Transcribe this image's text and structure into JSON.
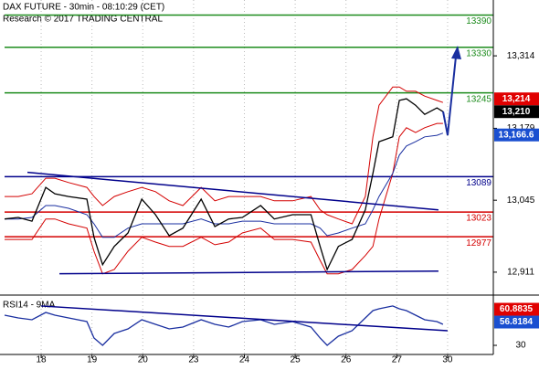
{
  "chart_data": [
    {
      "type": "line",
      "title": "DAX FUTURE - 30min - 08:10:29 (CET)",
      "subtitle": "Research © 2017 TRADING CENTRAL",
      "grid": true,
      "x": [
        -0.72,
        -0.45,
        -0.18,
        0.09,
        0.27,
        0.54,
        0.9,
        1.04,
        1.21,
        1.44,
        1.71,
        1.98,
        2.25,
        2.52,
        2.79,
        3.15,
        3.42,
        3.69,
        3.96,
        4.32,
        4.59,
        4.95,
        5.31,
        5.49,
        5.63,
        5.85,
        6.12,
        6.38,
        6.53,
        6.65,
        6.92,
        7.05,
        7.19,
        7.37,
        7.55,
        7.79,
        7.91
      ],
      "xlim": [
        -0.81,
        8.9
      ],
      "xticks": [
        {
          "value": 0,
          "label": "18"
        },
        {
          "value": 1,
          "label": "19"
        },
        {
          "value": 2,
          "label": "20"
        },
        {
          "value": 3,
          "label": "23"
        },
        {
          "value": 4,
          "label": "24"
        },
        {
          "value": 5,
          "label": "25"
        },
        {
          "value": 6,
          "label": "26"
        },
        {
          "value": 7,
          "label": "27"
        },
        {
          "value": 8,
          "label": "30"
        }
      ],
      "ylim": [
        12870,
        13418
      ],
      "yticks": [
        {
          "value": 13314,
          "label": "13,314"
        },
        {
          "value": 13179,
          "label": "13,179"
        },
        {
          "value": 13045,
          "label": "13,045"
        },
        {
          "value": 12911,
          "label": "12,911"
        }
      ],
      "series": [
        {
          "color": "#d40000",
          "values": [
            13052,
            13052,
            13057,
            13086,
            13086,
            13078,
            13069,
            13052,
            13035,
            13052,
            13061,
            13069,
            13061,
            13044,
            13035,
            13069,
            13044,
            13052,
            13052,
            13052,
            13044,
            13044,
            13052,
            13027,
            13018,
            13010,
            13001,
            13052,
            13163,
            13222,
            13256,
            13256,
            13248,
            13248,
            13239,
            13231,
            13227
          ]
        },
        {
          "color": "#d40000",
          "values": [
            12972,
            12972,
            12972,
            13010,
            13010,
            13001,
            12993,
            12950,
            12908,
            12916,
            12950,
            12976,
            12967,
            12959,
            12959,
            12976,
            12962,
            12967,
            12984,
            12993,
            12972,
            12972,
            12967,
            12933,
            12908,
            12908,
            12916,
            12942,
            12959,
            13010,
            13095,
            13163,
            13180,
            13171,
            13180,
            13188,
            13188
          ]
        },
        {
          "color": "#1a2fa0",
          "values": [
            13010,
            13010,
            13013,
            13035,
            13035,
            13030,
            13018,
            13001,
            12976,
            12976,
            12993,
            13001,
            13001,
            13001,
            13001,
            13010,
            13001,
            13001,
            13006,
            13006,
            13001,
            13001,
            13001,
            12993,
            12979,
            12984,
            12993,
            13001,
            13027,
            13052,
            13095,
            13129,
            13146,
            13154,
            13163,
            13166,
            13170
          ]
        },
        {
          "color": "#000000",
          "values": [
            13010,
            13013,
            13006,
            13069,
            13057,
            13052,
            13047,
            12976,
            12925,
            12959,
            12984,
            13047,
            13018,
            12979,
            12993,
            13047,
            12996,
            13010,
            13013,
            13035,
            13010,
            13018,
            13018,
            12959,
            12916,
            12959,
            12972,
            13027,
            13095,
            13154,
            13163,
            13231,
            13234,
            13222,
            13205,
            13217,
            13210
          ]
        }
      ],
      "levels": [
        {
          "value": 13390,
          "color": "#1e8c1e"
        },
        {
          "value": 13330,
          "color": "#1e8c1e"
        },
        {
          "value": 13245,
          "color": "#1e8c1e"
        },
        {
          "value": 13089,
          "color": "#00008b"
        },
        {
          "value": 13023,
          "color": "#d40000"
        },
        {
          "value": 12977,
          "color": "#d40000"
        }
      ],
      "trendlines": [
        {
          "x": [
            -0.27,
            7.82
          ],
          "values": [
            13097,
            13027
          ],
          "color": "#00008b"
        },
        {
          "x": [
            0.36,
            7.82
          ],
          "values": [
            12908,
            12913
          ],
          "color": "#00008b"
        }
      ],
      "price_labels": [
        {
          "value": 13214,
          "label": "13,214",
          "color": "#e00000"
        },
        {
          "value": 13210,
          "label": "13,210",
          "color": "#000000"
        },
        {
          "value": 13166.6,
          "label": "13,166.6",
          "color": "#1a4fd0"
        }
      ]
    },
    {
      "type": "line",
      "title": "RSI14 - 9MA",
      "grid": true,
      "x": [
        -0.72,
        -0.45,
        -0.18,
        0.09,
        0.27,
        0.54,
        0.9,
        1.04,
        1.21,
        1.44,
        1.71,
        1.98,
        2.25,
        2.52,
        2.79,
        3.15,
        3.42,
        3.69,
        3.96,
        4.32,
        4.59,
        4.95,
        5.31,
        5.49,
        5.63,
        5.85,
        6.12,
        6.38,
        6.53,
        6.65,
        6.92,
        7.05,
        7.19,
        7.37,
        7.55,
        7.79,
        7.91
      ],
      "xlim": [
        -0.81,
        8.9
      ],
      "xticks": [
        {
          "value": 0,
          "label": "18"
        },
        {
          "value": 1,
          "label": "19"
        },
        {
          "value": 2,
          "label": "20"
        },
        {
          "value": 3,
          "label": "23"
        },
        {
          "value": 4,
          "label": "24"
        },
        {
          "value": 5,
          "label": "25"
        },
        {
          "value": 6,
          "label": "26"
        },
        {
          "value": 7,
          "label": "27"
        },
        {
          "value": 8,
          "label": "30"
        }
      ],
      "ylim": [
        19.5,
        84.7
      ],
      "yticks": [
        30
      ],
      "series": [
        {
          "color": "#1a2fa0",
          "values": [
            64.7,
            61.6,
            59.5,
            67.9,
            64.7,
            61.6,
            57.4,
            38.4,
            30,
            43.7,
            48.9,
            59.5,
            54.2,
            48.9,
            51.1,
            59.5,
            54.2,
            51.1,
            57.4,
            59.5,
            54.2,
            57.4,
            51.1,
            38.4,
            30,
            40.5,
            46.8,
            61.6,
            70,
            72.1,
            75.3,
            72.1,
            70,
            64.7,
            59.5,
            57.4,
            54.2
          ]
        }
      ],
      "trendlines": [
        {
          "x": [
            0,
            8
          ],
          "values": [
            75.3,
            46.8
          ],
          "color": "#00008b"
        }
      ],
      "price_labels": [
        {
          "value": 60.8835,
          "color": "#e00000"
        },
        {
          "value": 56.8184,
          "color": "#1a4fd0"
        }
      ]
    }
  ]
}
